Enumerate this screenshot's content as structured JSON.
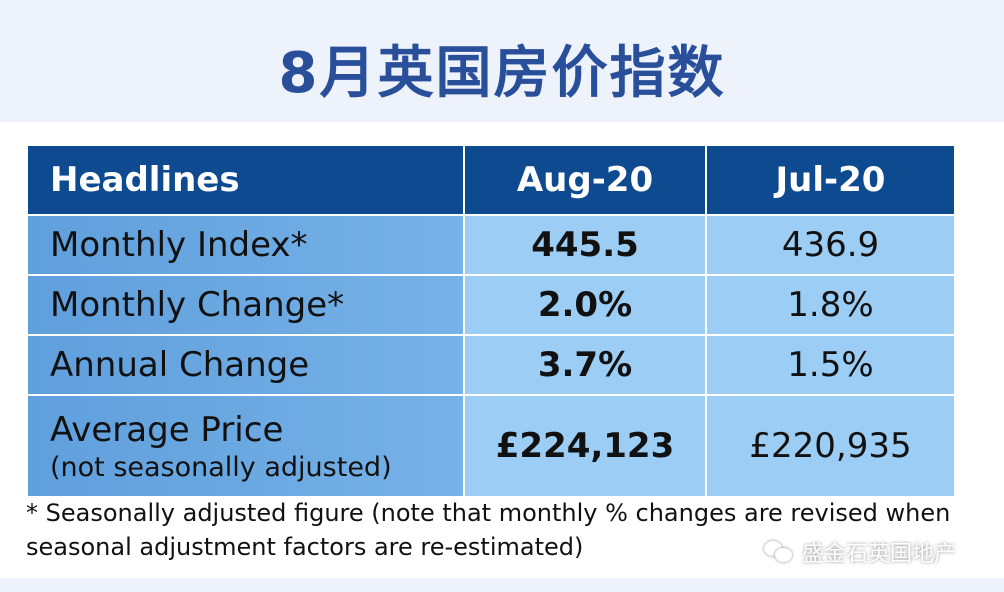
{
  "title": "8月英国房价指数",
  "table": {
    "headers": [
      "Headlines",
      "Aug-20",
      "Jul-20"
    ],
    "rows": [
      {
        "label": "Monthly Index*",
        "aug": "445.5",
        "jul": "436.9"
      },
      {
        "label": "Monthly Change*",
        "aug": "2.0%",
        "jul": "1.8%"
      },
      {
        "label": "Annual Change",
        "aug": "3.7%",
        "jul": "1.5%"
      },
      {
        "label": "Average Price",
        "sublabel": "(not seasonally adjusted)",
        "aug": "£224,123",
        "jul": "£220,935"
      }
    ]
  },
  "footnote": "* Seasonally adjusted figure (note that monthly % changes are revised when seasonal adjustment factors are re-estimated)",
  "watermark": {
    "text": "盛金石英国地产",
    "icon": "wechat-icon"
  },
  "colors": {
    "title": "#2a4f9a",
    "header_bg": "#0e4a8f",
    "label_bg": "#6aa8e2",
    "value_bg": "#9ccdf5"
  }
}
